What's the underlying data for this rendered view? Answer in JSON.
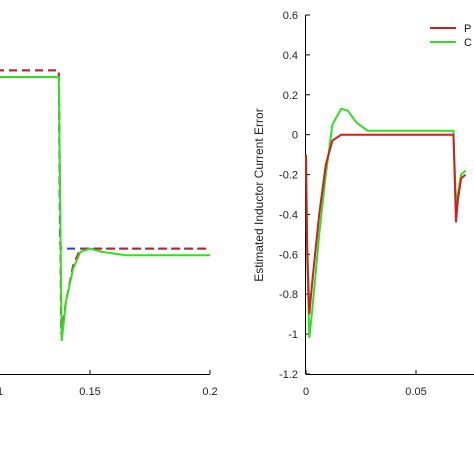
{
  "colors": {
    "proposed": "#cc1f1f",
    "other": "#33dd22",
    "dashed_blue": "#2244cc",
    "dashed_red": "#cc1f1f"
  },
  "chart_data": [
    {
      "type": "line",
      "title": "",
      "xlabel": "",
      "ylabel": "",
      "xlim": [
        0.1,
        0.2
      ],
      "x_ticks": [
        "0.15",
        "0.2"
      ],
      "partial_tick_label": "1",
      "grid": false,
      "series": [
        {
          "style": "dashed",
          "color": "#2244cc",
          "points": [
            [
              0.1,
              0.92
            ],
            [
              0.137,
              0.92
            ],
            [
              0.1375,
              0.4
            ],
            [
              0.138,
              0.38
            ],
            [
              0.2,
              0.38
            ]
          ]
        },
        {
          "style": "dashed",
          "color": "#cc1f1f",
          "points": [
            [
              0.1,
              0.92
            ],
            [
              0.137,
              0.92
            ],
            [
              0.138,
              0.12
            ],
            [
              0.14,
              0.22
            ],
            [
              0.143,
              0.33
            ],
            [
              0.146,
              0.38
            ],
            [
              0.2,
              0.38
            ]
          ]
        },
        {
          "style": "solid",
          "color": "#33dd22",
          "points": [
            [
              0.1,
              0.9
            ],
            [
              0.137,
              0.9
            ],
            [
              0.1382,
              0.1
            ],
            [
              0.14,
              0.22
            ],
            [
              0.143,
              0.32
            ],
            [
              0.146,
              0.37
            ],
            [
              0.15,
              0.38
            ],
            [
              0.155,
              0.37
            ],
            [
              0.165,
              0.36
            ],
            [
              0.2,
              0.36
            ]
          ]
        }
      ]
    },
    {
      "type": "line",
      "title": "",
      "xlabel": "",
      "ylabel": "Estimated Inductor Current Error",
      "xlim": [
        0,
        0.0833
      ],
      "ylim": [
        -1.2,
        0.6
      ],
      "y_ticks": [
        "0.6",
        "0.4",
        "0.2",
        "0",
        "-0.2",
        "-0.4",
        "-0.6",
        "-0.8",
        "-1",
        "-1.2"
      ],
      "x_ticks": [
        "0",
        "0.05"
      ],
      "grid": false,
      "legend_position": "top-right",
      "legend": [
        "P",
        "C"
      ],
      "series": [
        {
          "name": "P",
          "color": "#cc1f1f",
          "points": [
            [
              0,
              -0.1
            ],
            [
              0.0005,
              -0.55
            ],
            [
              0.0015,
              -0.9
            ],
            [
              0.003,
              -0.72
            ],
            [
              0.006,
              -0.4
            ],
            [
              0.009,
              -0.15
            ],
            [
              0.012,
              -0.03
            ],
            [
              0.016,
              0.0
            ],
            [
              0.024,
              0.0
            ],
            [
              0.067,
              0.0
            ],
            [
              0.0672,
              -0.05
            ],
            [
              0.0682,
              -0.44
            ],
            [
              0.069,
              -0.33
            ],
            [
              0.0705,
              -0.22
            ],
            [
              0.0725,
              -0.2
            ]
          ]
        },
        {
          "name": "C",
          "color": "#33dd22",
          "points": [
            [
              0,
              -0.1
            ],
            [
              0.0005,
              -0.6
            ],
            [
              0.0015,
              -1.02
            ],
            [
              0.003,
              -0.86
            ],
            [
              0.006,
              -0.5
            ],
            [
              0.009,
              -0.2
            ],
            [
              0.012,
              0.05
            ],
            [
              0.016,
              0.13
            ],
            [
              0.019,
              0.12
            ],
            [
              0.023,
              0.06
            ],
            [
              0.028,
              0.02
            ],
            [
              0.035,
              0.02
            ],
            [
              0.067,
              0.02
            ],
            [
              0.0672,
              -0.05
            ],
            [
              0.0683,
              -0.38
            ],
            [
              0.069,
              -0.3
            ],
            [
              0.0705,
              -0.2
            ],
            [
              0.0725,
              -0.18
            ]
          ]
        }
      ]
    }
  ]
}
